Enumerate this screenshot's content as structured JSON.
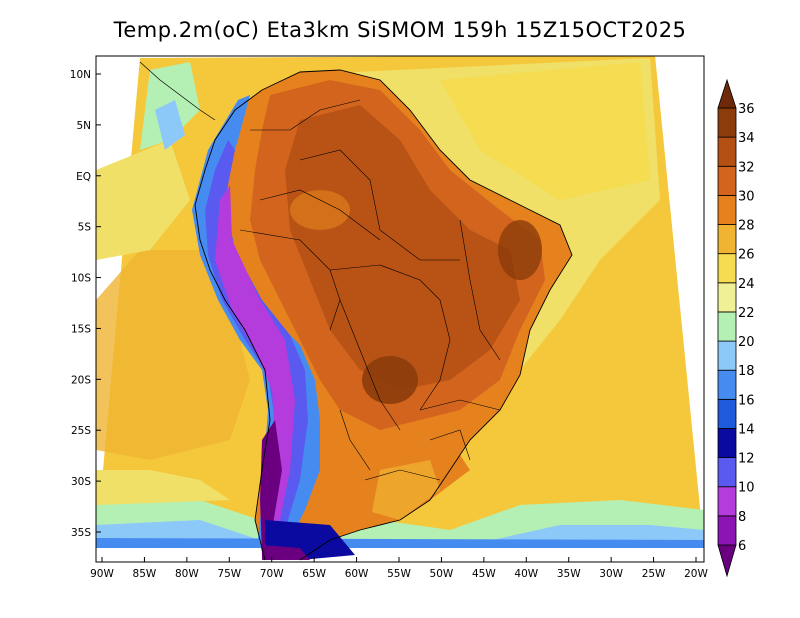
{
  "title": "Temp.2m(oC) Eta3km SiSMOM 159h 15Z15OCT2025",
  "variable": "Temp.2m",
  "units": "oC",
  "model": "Eta3km SiSMOM",
  "lead_time": "159h",
  "valid_time": "15Z15OCT2025",
  "lat_labels": [
    "10N",
    "5N",
    "EQ",
    "5S",
    "10S",
    "15S",
    "20S",
    "25S",
    "30S",
    "35S"
  ],
  "lat_values": [
    10,
    5,
    0,
    -5,
    -10,
    -15,
    -20,
    -25,
    -30,
    -35
  ],
  "lon_labels": [
    "90W",
    "85W",
    "80W",
    "75W",
    "70W",
    "65W",
    "60W",
    "55W",
    "50W",
    "45W",
    "40W",
    "35W",
    "30W",
    "25W",
    "20W"
  ],
  "lon_values": [
    -90,
    -85,
    -80,
    -75,
    -70,
    -65,
    -60,
    -55,
    -50,
    -45,
    -40,
    -35,
    -30,
    -25,
    -20
  ],
  "colorbar": {
    "labels": [
      "6",
      "8",
      "10",
      "12",
      "14",
      "16",
      "18",
      "20",
      "22",
      "24",
      "26",
      "28",
      "30",
      "32",
      "34",
      "36"
    ],
    "colors": [
      "#6a0080",
      "#8c14b4",
      "#b43cdc",
      "#5a5af0",
      "#0a0aa0",
      "#1e5adc",
      "#468cf0",
      "#8cc8f8",
      "#b4f0b4",
      "#f0f096",
      "#f5dc50",
      "#f0b432",
      "#e6821e",
      "#d2641e",
      "#b45014",
      "#8c3c0a",
      "#6e280a"
    ]
  },
  "legend": {
    "orientation": "vertical",
    "position": "right"
  }
}
